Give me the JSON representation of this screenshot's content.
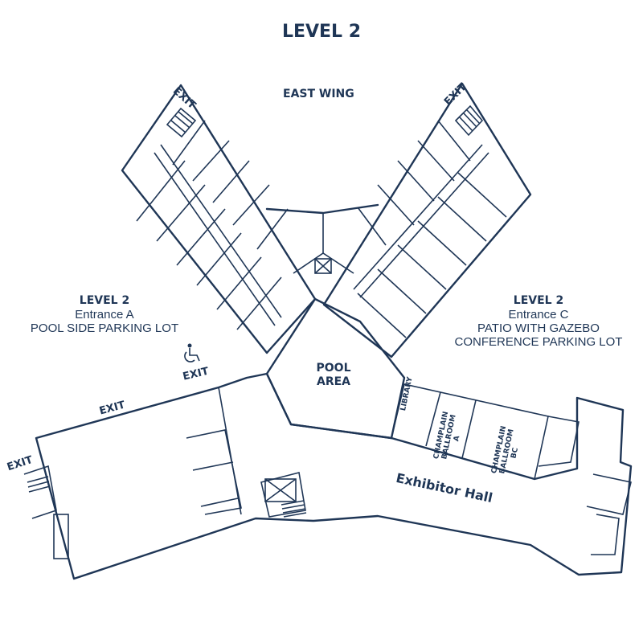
{
  "title": "LEVEL 2",
  "wings": {
    "east": "EAST WING"
  },
  "entrance_a": {
    "level": "LEVEL 2",
    "entrance": "Entrance A",
    "lot": "POOL SIDE PARKING LOT"
  },
  "entrance_c": {
    "level": "LEVEL 2",
    "entrance": "Entrance C",
    "line1": "PATIO WITH GAZEBO",
    "line2": "CONFERENCE PARKING LOT"
  },
  "rooms": {
    "pool_line1": "POOL",
    "pool_line2": "AREA",
    "library": "LIBRARY",
    "champlain_a_l1": "CHAMPLAIN",
    "champlain_a_l2": "BALLROOM",
    "champlain_a_l3": "A",
    "champlain_bc_l1": "CHAMPLAIN",
    "champlain_bc_l2": "BALLROOM",
    "champlain_bc_l3": "BC",
    "exhibitor": "Exhibitor Hall"
  },
  "exits": {
    "nw": "EXIT",
    "ne": "EXIT",
    "accessible": "EXIT",
    "south_wall": "EXIT",
    "far_west": "EXIT"
  },
  "icons": {
    "accessible": "wheelchair-icon",
    "stairs": "stairs-icon",
    "elevator": "elevator-icon"
  },
  "colors": {
    "ink": "#1f3656",
    "background": "#ffffff"
  }
}
